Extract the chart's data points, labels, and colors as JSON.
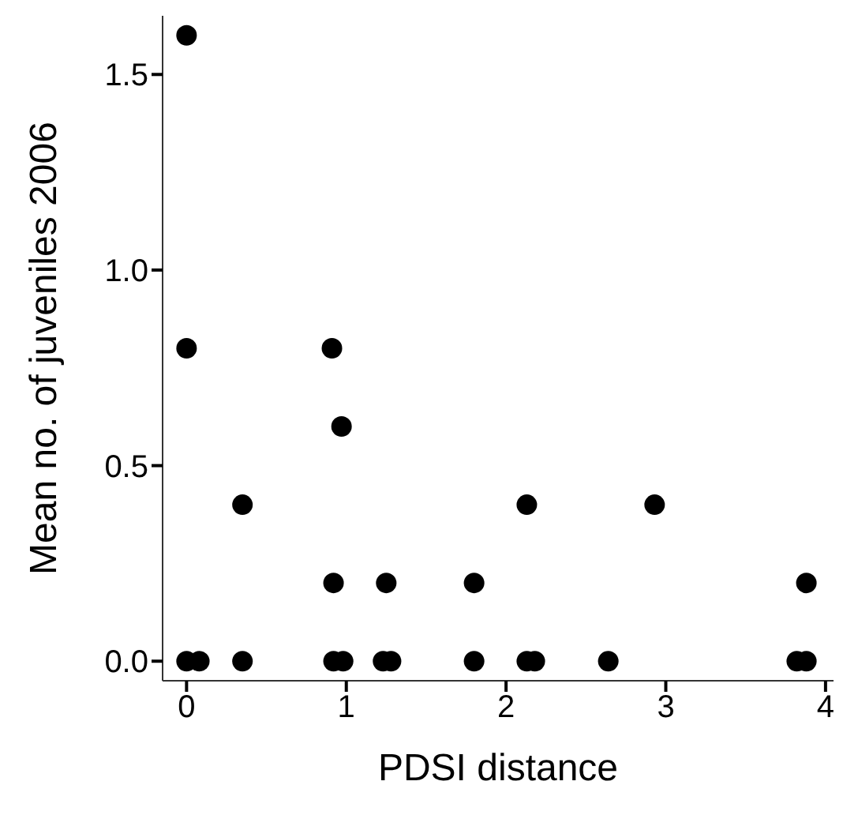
{
  "chart_data": {
    "type": "scatter",
    "xlabel": "PDSI distance",
    "ylabel": "Mean no. of juveniles 2006",
    "x": [
      0,
      0,
      0,
      0.08,
      0.35,
      0.35,
      0.91,
      0.92,
      0.92,
      0.97,
      0.98,
      1.23,
      1.25,
      1.28,
      1.8,
      1.8,
      2.13,
      2.13,
      2.18,
      2.64,
      2.93,
      3.82,
      3.88,
      3.88
    ],
    "series": [
      {
        "color": "#000000",
        "values": [
          1.6,
          0.8,
          0,
          0,
          0.4,
          0,
          0.8,
          0.2,
          0,
          0.6,
          0,
          0,
          0.2,
          0,
          0.2,
          0,
          0.4,
          0,
          0,
          0,
          0.4,
          0,
          0.2,
          0
        ]
      }
    ],
    "xlim": [
      -0.15,
      4.05
    ],
    "ylim": [
      -0.05,
      1.65
    ],
    "xticks": [
      0,
      1,
      2,
      3,
      4
    ],
    "yticks": [
      {
        "value": 0,
        "label": "0.0"
      },
      {
        "value": 0.5,
        "label": "0.5"
      },
      {
        "value": 1,
        "label": "1.0"
      },
      {
        "value": 1.5,
        "label": "1.5"
      }
    ],
    "grid": false,
    "legend": false,
    "marker": "circle"
  }
}
